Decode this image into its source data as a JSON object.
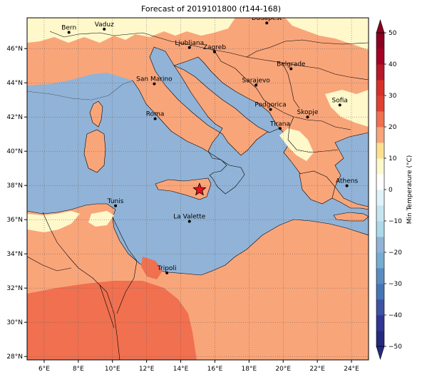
{
  "title": "Forecast of 2019101800 (f144-168)",
  "map": {
    "extent": {
      "lon_min": 5.0,
      "lon_max": 25.0,
      "lat_min": 27.8,
      "lat_max": 47.8
    },
    "lon_ticks": [
      "6°E",
      "8°E",
      "10°E",
      "12°E",
      "14°E",
      "16°E",
      "18°E",
      "20°E",
      "22°E",
      "24°E"
    ],
    "lat_ticks": [
      "28°N",
      "30°N",
      "32°N",
      "34°N",
      "36°N",
      "38°N",
      "40°N",
      "42°N",
      "44°N",
      "46°N"
    ],
    "gridlines": true,
    "colors": {
      "sea": "#91b3d7",
      "land_15_20": "#f9a57a",
      "land_10_15": "#fff8cb",
      "land_20_25": "#f07050",
      "star": "#e8141c"
    },
    "cities": [
      {
        "name": "Bern",
        "lon": 7.45,
        "lat": 46.95
      },
      {
        "name": "Vaduz",
        "lon": 9.52,
        "lat": 47.14
      },
      {
        "name": "Budapest",
        "lon": 19.04,
        "lat": 47.5
      },
      {
        "name": "Ljubljana",
        "lon": 14.51,
        "lat": 46.06
      },
      {
        "name": "Zagreb",
        "lon": 15.98,
        "lat": 45.81
      },
      {
        "name": "Belgrade",
        "lon": 20.46,
        "lat": 44.82
      },
      {
        "name": "San Marino",
        "lon": 12.45,
        "lat": 43.94
      },
      {
        "name": "Sarajevo",
        "lon": 18.41,
        "lat": 43.86
      },
      {
        "name": "Sofia",
        "lon": 23.32,
        "lat": 42.7
      },
      {
        "name": "Podgorica",
        "lon": 19.26,
        "lat": 42.44
      },
      {
        "name": "Skopje",
        "lon": 21.43,
        "lat": 42.0
      },
      {
        "name": "Roma",
        "lon": 12.5,
        "lat": 41.9
      },
      {
        "name": "Tirana",
        "lon": 19.82,
        "lat": 41.33
      },
      {
        "name": "Athens",
        "lon": 23.73,
        "lat": 37.98
      },
      {
        "name": "Tunis",
        "lon": 10.18,
        "lat": 36.81
      },
      {
        "name": "La Valette",
        "lon": 14.51,
        "lat": 35.9
      },
      {
        "name": "Tripoli",
        "lon": 13.19,
        "lat": 32.89
      }
    ],
    "marker": {
      "symbol": "star",
      "lon": 15.1,
      "lat": 37.75
    }
  },
  "colorbar": {
    "label": "Min Temperature (°C)",
    "ticks": [
      "−50",
      "−40",
      "−30",
      "−20",
      "−10",
      "0",
      "10",
      "20",
      "30",
      "40",
      "50"
    ],
    "levels": [
      -50,
      -45,
      -40,
      -35,
      -30,
      -25,
      -20,
      -15,
      -10,
      -5,
      0,
      5,
      10,
      15,
      20,
      25,
      30,
      35,
      40,
      45,
      50
    ],
    "colors": [
      "#262a7e",
      "#313695",
      "#3e53a2",
      "#4575b4",
      "#5b8cc0",
      "#74add1",
      "#91b3d7",
      "#abd9e9",
      "#c6e5f0",
      "#e0f3f8",
      "#ffffff",
      "#fff8cb",
      "#fee090",
      "#f9a57a",
      "#f07050",
      "#e04030",
      "#d73027",
      "#b8182a",
      "#a50026",
      "#8b0020"
    ],
    "extend": "both"
  }
}
